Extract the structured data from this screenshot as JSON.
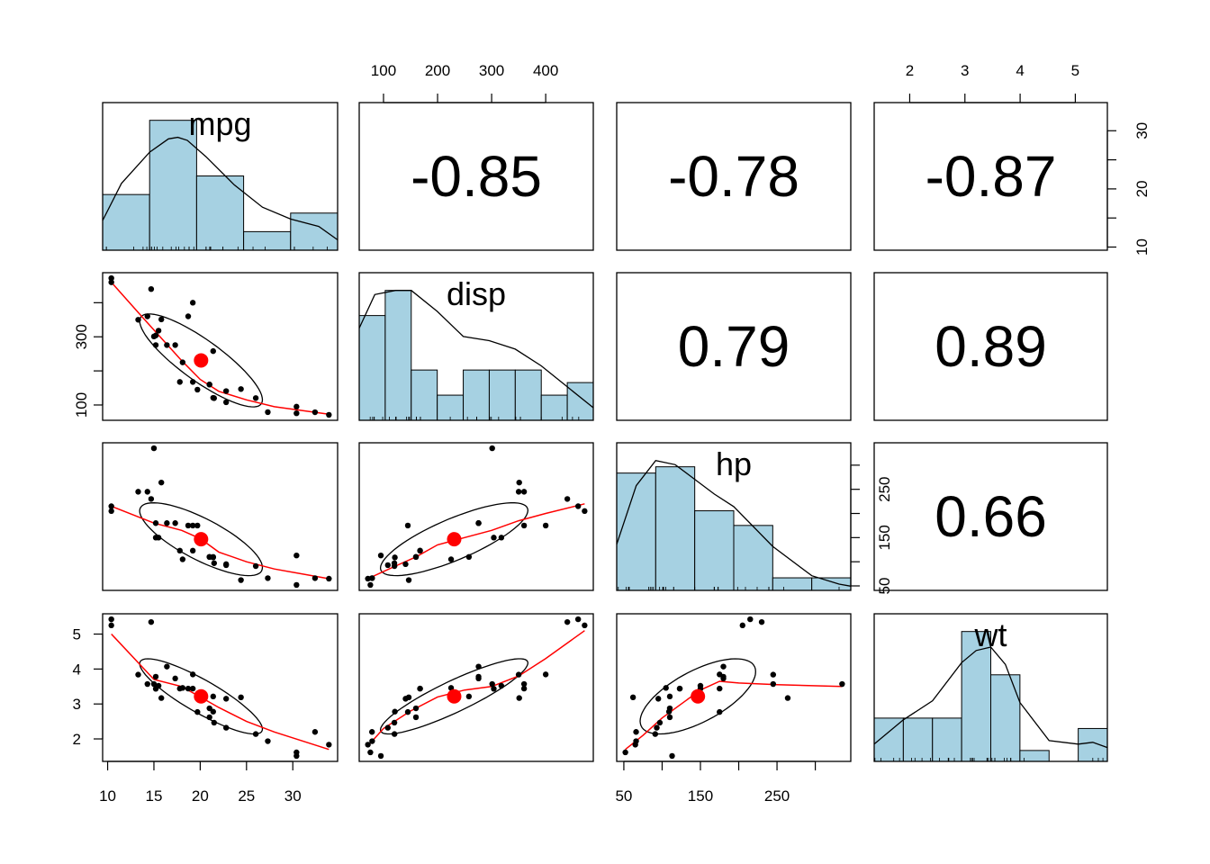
{
  "chart_data": {
    "type": "scatter",
    "variables": [
      "mpg",
      "disp",
      "hp",
      "wt"
    ],
    "diagonal": "histogram with density curve and rug",
    "upper_panels": "correlation coefficient",
    "lower_panels": "scatter with loess smooth, correlation ellipse and mean point",
    "colors": {
      "hist_fill": "#a6d1e2",
      "smooth": "#ff0000",
      "mean_point": "#ff0000",
      "points": "#000000"
    },
    "correlations": [
      {
        "row": 0,
        "col": 1,
        "label": "-0.85"
      },
      {
        "row": 0,
        "col": 2,
        "label": "-0.78"
      },
      {
        "row": 0,
        "col": 3,
        "label": "-0.87"
      },
      {
        "row": 1,
        "col": 2,
        "label": "0.79"
      },
      {
        "row": 1,
        "col": 3,
        "label": "0.89"
      },
      {
        "row": 2,
        "col": 3,
        "label": "0.66"
      }
    ],
    "ranges": {
      "mpg": [
        10.4,
        33.9
      ],
      "disp": [
        71.1,
        472
      ],
      "hp": [
        52,
        335
      ],
      "wt": [
        1.513,
        5.424
      ]
    },
    "tick_labels": {
      "mpg": [
        "10",
        "15",
        "20",
        "25",
        "30"
      ],
      "disp": [
        "100",
        "200",
        "300",
        "400"
      ],
      "disp_left": [
        "100",
        "300"
      ],
      "hp_bottom": [
        "50",
        "150",
        "250"
      ],
      "hp_right": [
        "50",
        "150",
        "250"
      ],
      "wt": [
        "2",
        "3",
        "4",
        "5"
      ],
      "mpg_right": [
        "10",
        "20",
        "30"
      ]
    },
    "tick_values": {
      "mpg": [
        10,
        15,
        20,
        25,
        30
      ],
      "disp": [
        100,
        200,
        300,
        400
      ],
      "disp_left": [
        100,
        300
      ],
      "hp_bottom": [
        50,
        150,
        250
      ],
      "hp_right": [
        50,
        100,
        150,
        200,
        250,
        300
      ],
      "wt": [
        2,
        3,
        4,
        5
      ],
      "mpg_right": [
        10,
        15,
        20,
        25,
        30,
        35
      ]
    },
    "points": {
      "mpg": [
        21,
        21,
        22.8,
        21.4,
        18.7,
        18.1,
        14.3,
        24.4,
        22.8,
        19.2,
        17.8,
        16.4,
        17.3,
        15.2,
        10.4,
        10.4,
        14.7,
        32.4,
        30.4,
        33.9,
        21.5,
        15.5,
        15.2,
        13.3,
        19.2,
        27.3,
        26,
        30.4,
        15.8,
        19.7,
        15,
        21.4
      ],
      "disp": [
        160,
        160,
        108,
        258,
        360,
        225,
        360,
        146.7,
        140.8,
        167.6,
        167.6,
        275.8,
        275.8,
        275.8,
        472,
        460,
        440,
        78.7,
        75.7,
        71.1,
        120.1,
        318,
        304,
        350,
        400,
        79,
        120.3,
        95.1,
        351,
        145,
        301,
        121
      ],
      "hp": [
        110,
        110,
        93,
        110,
        175,
        105,
        245,
        62,
        95,
        123,
        123,
        180,
        180,
        180,
        205,
        215,
        230,
        66,
        52,
        65,
        97,
        150,
        150,
        245,
        175,
        66,
        91,
        113,
        264,
        175,
        335,
        109
      ],
      "wt": [
        2.62,
        2.875,
        2.32,
        3.215,
        3.44,
        3.46,
        3.57,
        3.19,
        3.15,
        3.44,
        3.44,
        4.07,
        3.73,
        3.78,
        5.25,
        5.424,
        5.345,
        2.2,
        1.615,
        1.835,
        2.465,
        3.52,
        3.435,
        3.84,
        3.845,
        1.935,
        2.14,
        1.513,
        3.17,
        2.77,
        3.57,
        2.78
      ]
    },
    "histograms": {
      "mpg": {
        "breaks": [
          10,
          15,
          20,
          25,
          30,
          35
        ],
        "density": [
          0.0375,
          0.0875,
          0.05,
          0.0125,
          0.025
        ]
      },
      "disp": {
        "breaks": [
          50,
          100,
          150,
          200,
          250,
          300,
          350,
          400,
          450,
          500
        ],
        "density": [
          0.0025,
          0.0031,
          0.0012,
          0.0006,
          0.0012,
          0.0012,
          0.0012,
          0.0006,
          0.0009
        ]
      },
      "hp": {
        "breaks": [
          50,
          100,
          150,
          200,
          250,
          300,
          350
        ],
        "density": [
          0.0056,
          0.0059,
          0.0038,
          0.0031,
          0.0006,
          0.0006
        ]
      },
      "wt": {
        "breaks": [
          1.5,
          2,
          2.5,
          3,
          3.5,
          4,
          4.5,
          5,
          5.5
        ],
        "density": [
          0.25,
          0.25,
          0.25,
          0.75,
          0.5,
          0.063,
          0,
          0.19
        ]
      }
    },
    "density_curves": {
      "mpg": {
        "x": [
          8,
          12,
          15,
          17,
          18,
          19,
          21,
          24,
          27,
          30,
          33,
          36
        ],
        "y": [
          0.02,
          0.045,
          0.066,
          0.075,
          0.076,
          0.074,
          0.063,
          0.044,
          0.029,
          0.021,
          0.016,
          0.007
        ]
      },
      "disp": {
        "x": [
          50,
          80,
          120,
          150,
          200,
          250,
          300,
          350,
          400,
          450,
          500
        ],
        "y": [
          0.0022,
          0.003,
          0.0031,
          0.0031,
          0.0026,
          0.002,
          0.0019,
          0.0017,
          0.0013,
          0.0008,
          0.0003
        ]
      },
      "hp": {
        "x": [
          50,
          75,
          100,
          125,
          150,
          175,
          200,
          250,
          300,
          335,
          350
        ],
        "y": [
          0.0022,
          0.005,
          0.0062,
          0.006,
          0.0053,
          0.0046,
          0.004,
          0.0021,
          0.0007,
          0.0003,
          0.0002
        ]
      },
      "wt": {
        "x": [
          1.5,
          2,
          2.5,
          3,
          3.25,
          3.5,
          3.75,
          4,
          4.5,
          5,
          5.25,
          5.5
        ],
        "y": [
          0.1,
          0.24,
          0.35,
          0.57,
          0.64,
          0.66,
          0.56,
          0.34,
          0.12,
          0.1,
          0.11,
          0.08
        ]
      }
    },
    "smooth_lines": {
      "mpg_disp": {
        "x": [
          10.4,
          14,
          18,
          20,
          22,
          25,
          28,
          33.9
        ],
        "y": [
          460,
          350,
          230,
          175,
          140,
          115,
          95,
          73
        ]
      },
      "mpg_hp": {
        "x": [
          10.4,
          15,
          18,
          20,
          22,
          25,
          28,
          33.9
        ],
        "y": [
          215,
          180,
          165,
          148,
          120,
          100,
          85,
          65
        ]
      },
      "disp_hp": {
        "x": [
          71.1,
          120,
          160,
          200,
          250,
          300,
          350,
          400,
          472
        ],
        "y": [
          65,
          90,
          110,
          135,
          150,
          165,
          185,
          200,
          220
        ]
      },
      "mpg_wt": {
        "x": [
          10.4,
          15,
          18,
          20,
          22,
          25,
          28,
          33.9
        ],
        "y": [
          5,
          3.7,
          3.5,
          3.2,
          2.9,
          2.5,
          2.2,
          1.7
        ]
      },
      "disp_wt": {
        "x": [
          71.1,
          100,
          150,
          200,
          250,
          300,
          350,
          400,
          472
        ],
        "y": [
          1.8,
          2.3,
          2.8,
          3.2,
          3.4,
          3.5,
          3.8,
          4.3,
          5.1
        ]
      },
      "hp_wt": {
        "x": [
          52,
          75,
          100,
          125,
          150,
          175,
          200,
          250,
          335
        ],
        "y": [
          1.7,
          2.1,
          2.6,
          3.0,
          3.4,
          3.65,
          3.6,
          3.55,
          3.5
        ]
      }
    }
  }
}
